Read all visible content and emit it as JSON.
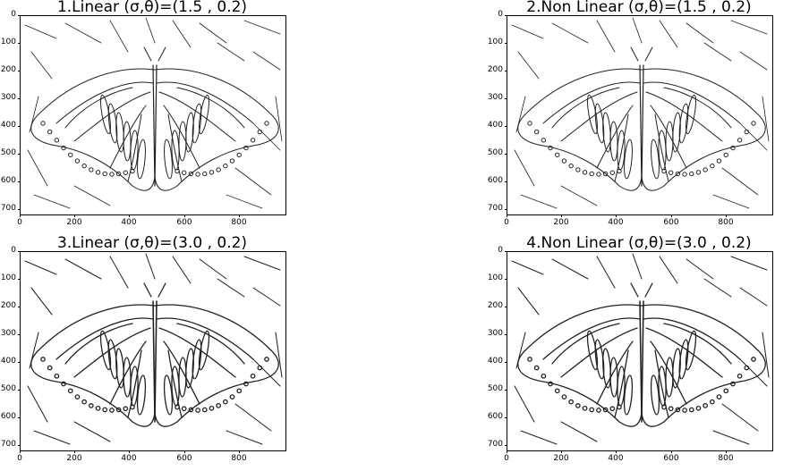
{
  "figure": {
    "panels": [
      {
        "title": "1.Linear (σ,θ)=(1.5 , 0.2)",
        "sigma": 1.5
      },
      {
        "title": "2.Non Linear (σ,θ)=(1.5 , 0.2)",
        "sigma": 1.5
      },
      {
        "title": "3.Linear (σ,θ)=(3.0 , 0.2)",
        "sigma": 3.0
      },
      {
        "title": "4.Non Linear (σ,θ)=(3.0 , 0.2)",
        "sigma": 3.0
      }
    ],
    "y_ticks": [
      "0",
      "100",
      "200",
      "300",
      "400",
      "500",
      "600",
      "700"
    ],
    "x_ticks": [
      "0",
      "200",
      "400",
      "600",
      "800"
    ],
    "content_icon": "butterfly-edge-map"
  }
}
